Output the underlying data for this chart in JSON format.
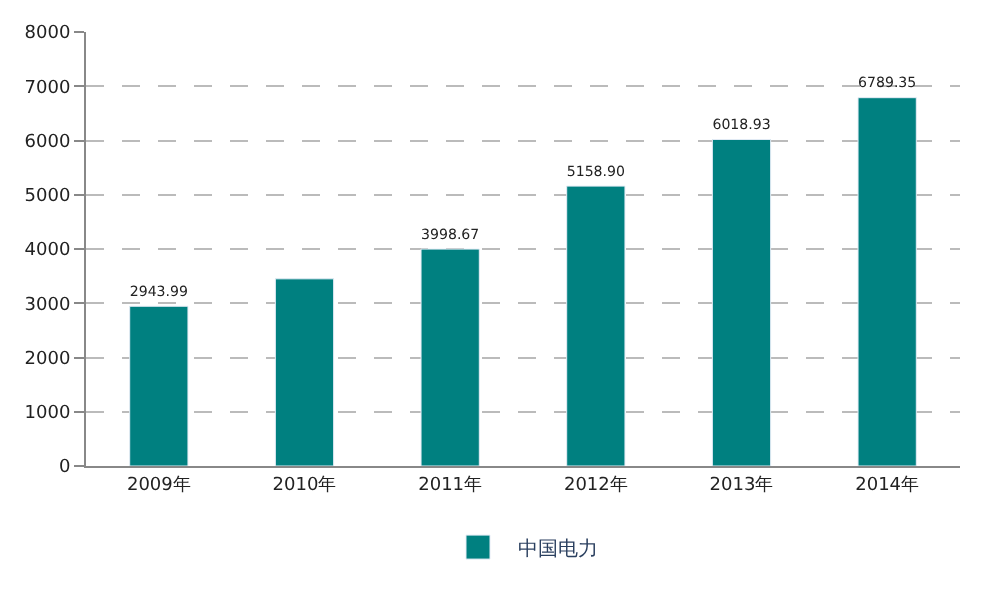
{
  "chart_data": {
    "type": "bar",
    "categories": [
      "2009年",
      "2010年",
      "2011年",
      "2012年",
      "2013年",
      "2014年"
    ],
    "series": [
      {
        "name": "中国电力",
        "color": "#008080",
        "values": [
          2943.99,
          3450,
          3998.67,
          5158.9,
          6018.93,
          6789.35
        ],
        "value_labels": [
          "2943.99",
          null,
          "3998.67",
          "5158.90",
          "6018.93",
          "6789.35"
        ]
      }
    ],
    "ylim": [
      0,
      8000
    ],
    "yticks": [
      0,
      1000,
      2000,
      3000,
      4000,
      5000,
      6000,
      7000,
      8000
    ],
    "grid": "y",
    "legend": "bottom"
  }
}
